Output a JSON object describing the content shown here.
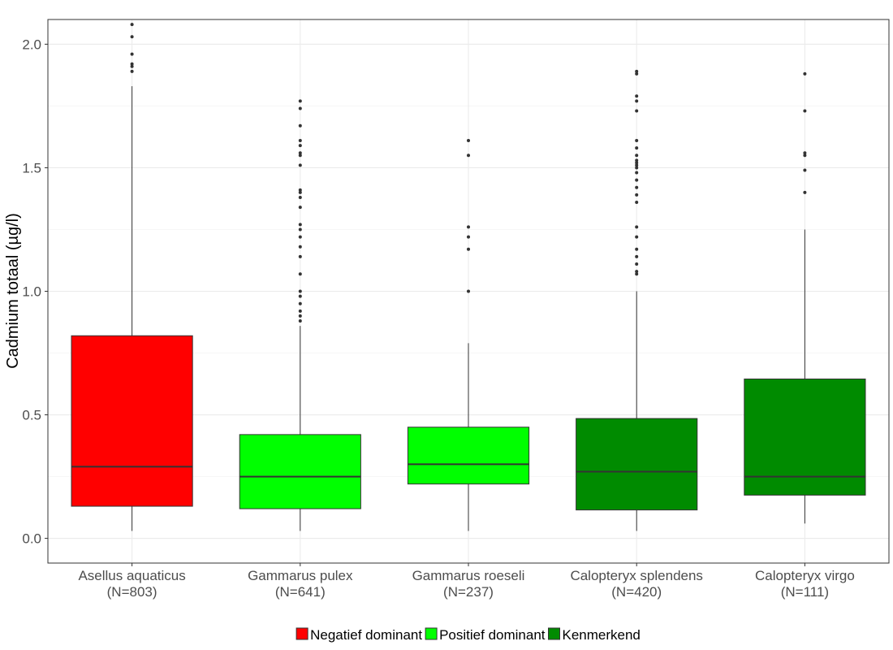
{
  "chart_data": {
    "type": "box",
    "ylabel": "Cadmium totaal (µg/l)",
    "xlabel": "",
    "ylim": [
      -0.1,
      2.1
    ],
    "y_ticks": [
      0.0,
      0.5,
      1.0,
      1.5,
      2.0
    ],
    "y_tick_labels": [
      "0.0",
      "0.5",
      "1.0",
      "1.5",
      "2.0"
    ],
    "grid": true,
    "legend_position": "bottom",
    "legend": [
      {
        "label": "Negatief dominant",
        "color": "#ff0000"
      },
      {
        "label": "Positief dominant",
        "color": "#00ff00"
      },
      {
        "label": "Kenmerkend",
        "color": "#008b00"
      }
    ],
    "categories": [
      {
        "name": "Asellus aquaticus",
        "n_label": "(N=803)",
        "group": "Negatief dominant",
        "whisker_low": 0.03,
        "q1": 0.13,
        "median": 0.29,
        "q3": 0.82,
        "whisker_high": 1.83,
        "outliers": [
          1.89,
          1.91,
          1.92,
          1.96,
          2.03,
          2.08
        ]
      },
      {
        "name": "Gammarus pulex",
        "n_label": "(N=641)",
        "group": "Positief dominant",
        "whisker_low": 0.03,
        "q1": 0.12,
        "median": 0.25,
        "q3": 0.42,
        "whisker_high": 0.86,
        "outliers": [
          0.88,
          0.9,
          0.92,
          0.95,
          0.98,
          1.0,
          1.07,
          1.14,
          1.18,
          1.22,
          1.25,
          1.27,
          1.34,
          1.38,
          1.4,
          1.41,
          1.51,
          1.55,
          1.56,
          1.59,
          1.61,
          1.67,
          1.74,
          1.77
        ]
      },
      {
        "name": "Gammarus roeseli",
        "n_label": "(N=237)",
        "group": "Positief dominant",
        "whisker_low": 0.03,
        "q1": 0.22,
        "median": 0.3,
        "q3": 0.45,
        "whisker_high": 0.79,
        "outliers": [
          1.0,
          1.17,
          1.22,
          1.26,
          1.55,
          1.61
        ]
      },
      {
        "name": "Calopteryx splendens",
        "n_label": "(N=420)",
        "group": "Kenmerkend",
        "whisker_low": 0.03,
        "q1": 0.115,
        "median": 0.27,
        "q3": 0.485,
        "whisker_high": 1.0,
        "outliers": [
          1.07,
          1.08,
          1.11,
          1.14,
          1.17,
          1.22,
          1.26,
          1.36,
          1.39,
          1.42,
          1.45,
          1.48,
          1.5,
          1.51,
          1.52,
          1.53,
          1.55,
          1.58,
          1.61,
          1.73,
          1.77,
          1.79,
          1.88,
          1.89
        ]
      },
      {
        "name": "Calopteryx virgo",
        "n_label": "(N=111)",
        "group": "Kenmerkend",
        "whisker_low": 0.06,
        "q1": 0.175,
        "median": 0.25,
        "q3": 0.645,
        "whisker_high": 1.25,
        "outliers": [
          1.4,
          1.49,
          1.55,
          1.56,
          1.73,
          1.88
        ]
      }
    ]
  }
}
